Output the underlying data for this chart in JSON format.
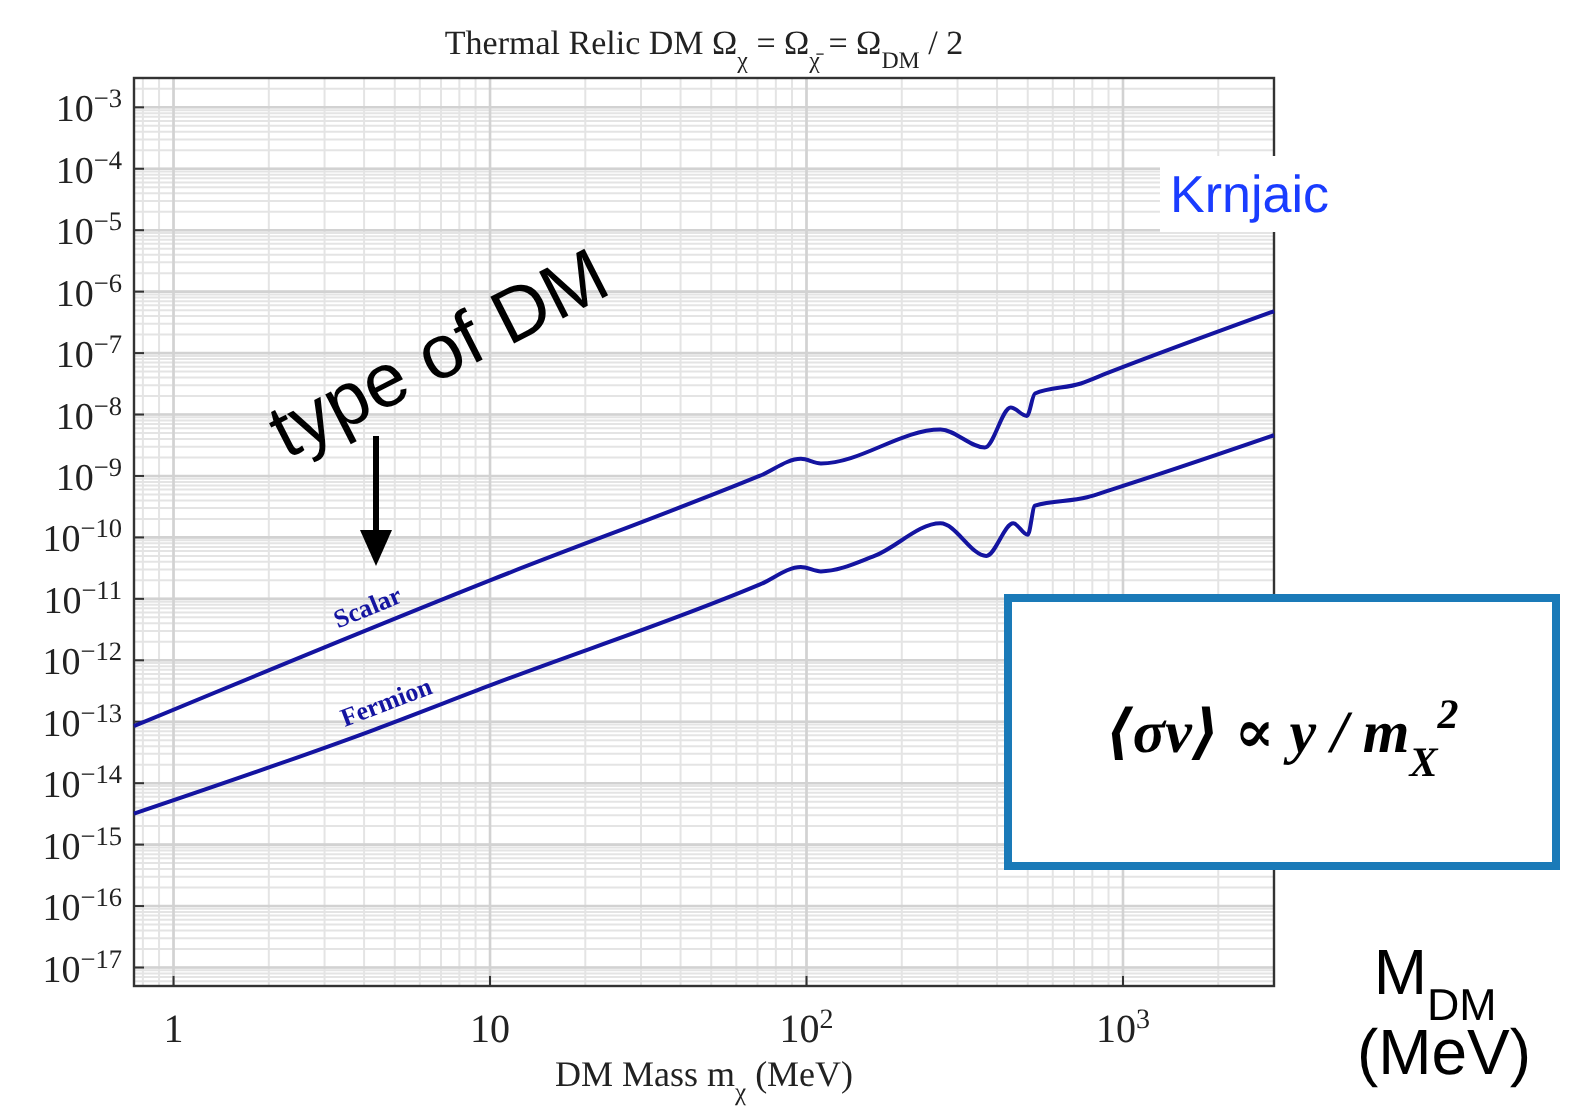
{
  "chart_data": {
    "type": "line",
    "title": "Thermal Relic DM Ω$_{χ}$ = Ω$_{χ̄}$ = Ω$_{DM}$ / 2",
    "xlabel": "DM Mass m$_{χ}$ (MeV)",
    "log": "xy",
    "grid": true,
    "line_style": "solid",
    "xlim": [
      0.75,
      3000
    ],
    "ylim": [
      5e-18,
      0.003
    ],
    "xticks": [
      1,
      10,
      {
        "value": 100,
        "label": "10$^{2}$"
      },
      {
        "value": 1000,
        "label": "10$^{3}$"
      }
    ],
    "yticks": [
      {
        "value": 0.001,
        "label": "10$^{−3}$"
      },
      {
        "value": 0.0001,
        "label": "10$^{−4}$"
      },
      {
        "value": 1e-05,
        "label": "10$^{−5}$"
      },
      {
        "value": 1e-06,
        "label": "10$^{−6}$"
      },
      {
        "value": 1e-07,
        "label": "10$^{−7}$"
      },
      {
        "value": 1e-08,
        "label": "10$^{−8}$"
      },
      {
        "value": 1e-09,
        "label": "10$^{−9}$"
      },
      {
        "value": 1e-10,
        "label": "10$^{−10}$"
      },
      {
        "value": 1e-11,
        "label": "10$^{−11}$"
      },
      {
        "value": 1e-12,
        "label": "10$^{−12}$"
      },
      {
        "value": 1e-13,
        "label": "10$^{−13}$"
      },
      {
        "value": 1e-14,
        "label": "10$^{−14}$"
      },
      {
        "value": 1e-15,
        "label": "10$^{−15}$"
      },
      {
        "value": 1e-16,
        "label": "10$^{−16}$"
      },
      {
        "value": 1e-17,
        "label": "10$^{−17}$"
      }
    ],
    "series": [
      {
        "name": "Scalar",
        "color": "#1414a0",
        "x": [
          0.75,
          10,
          71,
          96,
          111,
          265,
          366,
          442,
          497,
          527,
          736,
          890,
          3000
        ],
        "values": [
          8.5e-14,
          2e-11,
          1e-09,
          1.9e-09,
          1.6e-09,
          5.7e-09,
          2.9e-09,
          1.3e-08,
          9.5e-09,
          2.2e-08,
          3.2e-08,
          4.7e-08,
          4.8e-07
        ]
      },
      {
        "name": "Fermion",
        "color": "#1414a0",
        "x": [
          0.75,
          4.3,
          10,
          71,
          96,
          111,
          164,
          265,
          370,
          450,
          500,
          527,
          770,
          920,
          3000
        ],
        "values": [
          3.2e-15,
          7.4e-14,
          3.9e-13,
          1.7e-11,
          3.3e-11,
          2.8e-11,
          5e-11,
          1.7e-10,
          5e-11,
          1.7e-10,
          1.1e-10,
          3.3e-10,
          4.5e-10,
          6e-10,
          4.6e-09
        ]
      }
    ],
    "annotations": [
      "type of DM",
      "Krnjaic",
      "⟨σv⟩ ∝ y / m$_{X}$$^{2}$",
      "M$_{DM}$ (MeV)"
    ]
  }
}
